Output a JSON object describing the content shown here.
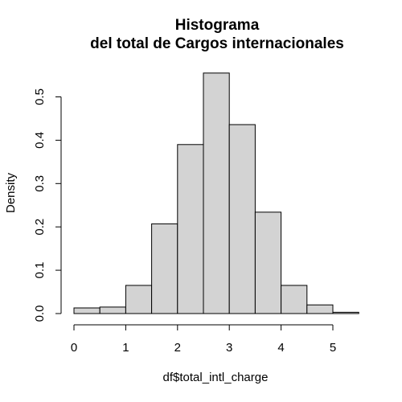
{
  "chart_data": {
    "type": "bar",
    "title_line1": "Histograma",
    "title_line2": "del total de Cargos internacionales",
    "xlabel": "df$total_intl_charge",
    "ylabel": "Density",
    "bin_edges": [
      0,
      0.5,
      1,
      1.5,
      2,
      2.5,
      3,
      3.5,
      4,
      4.5,
      5,
      5.5
    ],
    "values": [
      0.013,
      0.015,
      0.065,
      0.207,
      0.39,
      0.555,
      0.436,
      0.234,
      0.065,
      0.02,
      0.003
    ],
    "xlim": [
      0,
      5.5
    ],
    "ylim": [
      0,
      0.555
    ],
    "x_ticks": [
      0,
      1,
      2,
      3,
      4,
      5
    ],
    "x_tick_labels": [
      "0",
      "1",
      "2",
      "3",
      "4",
      "5"
    ],
    "y_ticks": [
      0,
      0.1,
      0.2,
      0.3,
      0.4,
      0.5
    ],
    "y_tick_labels": [
      "0.0",
      "0.1",
      "0.2",
      "0.3",
      "0.4",
      "0.5"
    ],
    "grid": false,
    "bar_color": "#d3d3d3"
  }
}
